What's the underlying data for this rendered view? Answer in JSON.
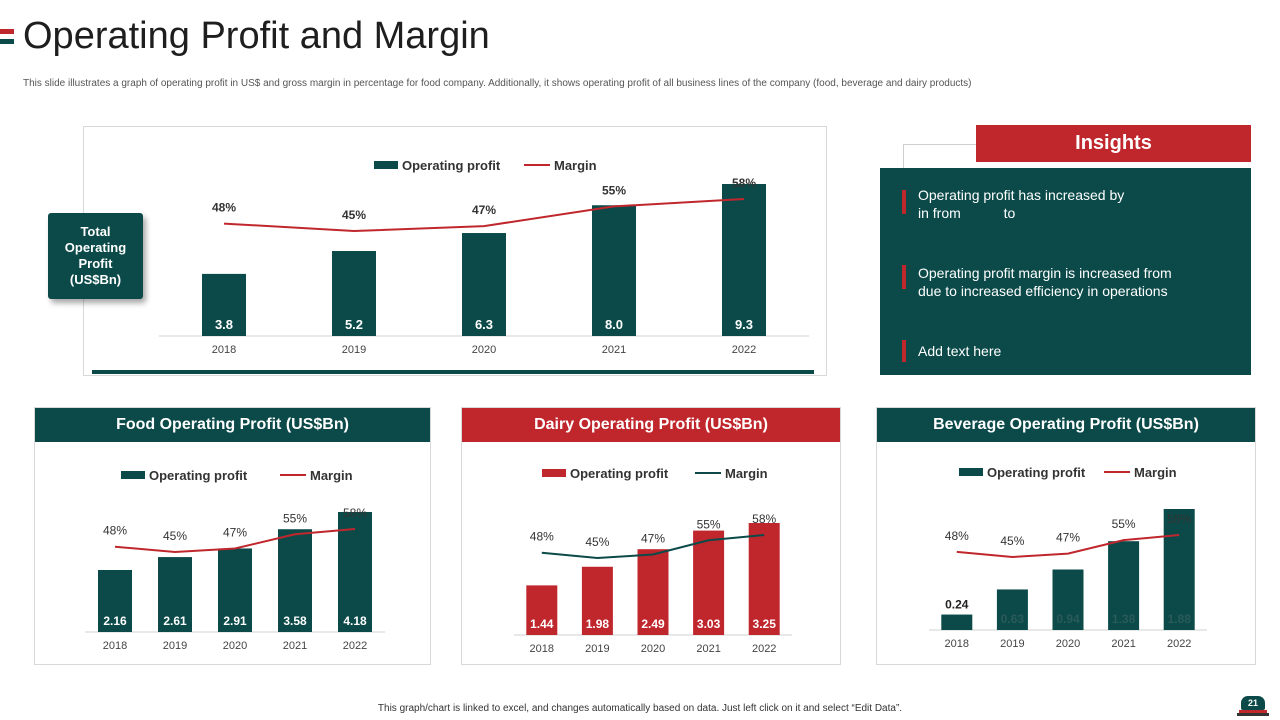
{
  "header": {
    "title": "Operating Profit and Margin",
    "subtitle": "This slide illustrates a graph of operating profit in US$ and gross margin in  percentage for food company. Additionally, it shows operating profit of all business lines of the company (food, beverage and dairy products)"
  },
  "total_box": {
    "label": "Total Operating Profit (US$Bn)"
  },
  "insights": {
    "title": "Insights",
    "items": [
      {
        "line1": "Operating profit has increased by",
        "line2": "in from           to"
      },
      {
        "line1": "Operating profit margin is increased from",
        "line2": "due to increased efficiency in operations"
      },
      {
        "line1": "Add text here",
        "line2": ""
      }
    ]
  },
  "footer": {
    "note": "This graph/chart is linked to excel, and changes automatically based on data. Just left click on it and select “Edit Data”.",
    "page_number": "21"
  },
  "colors": {
    "teal": "#0b4a49",
    "red": "#c0272d",
    "white": "#ffffff"
  },
  "chart_data": [
    {
      "id": "total",
      "type": "bar",
      "title": "Total Operating Profit (US$Bn)",
      "categories": [
        "2018",
        "2019",
        "2020",
        "2021",
        "2022"
      ],
      "series": [
        {
          "name": "Operating profit",
          "kind": "bar",
          "values": [
            3.8,
            5.2,
            6.3,
            8.0,
            9.3
          ],
          "labels": [
            "3.8",
            "5.2",
            "6.3",
            "8.0",
            "9.3"
          ]
        },
        {
          "name": "Margin",
          "kind": "line",
          "values": [
            48,
            45,
            47,
            55,
            58
          ],
          "labels": [
            "48%",
            "45%",
            "47%",
            "55%",
            "58%"
          ]
        }
      ],
      "legend": "top-center"
    },
    {
      "id": "food",
      "type": "bar",
      "title": "Food Operating Profit (US$Bn)",
      "categories": [
        "2018",
        "2019",
        "2020",
        "2021",
        "2022"
      ],
      "series": [
        {
          "name": "Operating profit",
          "kind": "bar",
          "values": [
            2.16,
            2.61,
            2.91,
            3.58,
            4.18
          ],
          "labels": [
            "2.16",
            "2.61",
            "2.91",
            "3.58",
            "4.18"
          ]
        },
        {
          "name": "Margin",
          "kind": "line",
          "values": [
            48,
            45,
            47,
            55,
            58
          ],
          "labels": [
            "48%",
            "45%",
            "47%",
            "55%",
            "58%"
          ]
        }
      ],
      "legend": "top-center"
    },
    {
      "id": "dairy",
      "type": "bar",
      "title": "Dairy Operating Profit (US$Bn)",
      "categories": [
        "2018",
        "2019",
        "2020",
        "2021",
        "2022"
      ],
      "series": [
        {
          "name": "Operating profit",
          "kind": "bar",
          "values": [
            1.44,
            1.98,
            2.49,
            3.03,
            3.25
          ],
          "labels": [
            "1.44",
            "1.98",
            "2.49",
            "3.03",
            "3.25"
          ]
        },
        {
          "name": "Margin",
          "kind": "line",
          "values": [
            48,
            45,
            47,
            55,
            58
          ],
          "labels": [
            "48%",
            "45%",
            "47%",
            "55%",
            "58%"
          ]
        }
      ],
      "legend": "top-center"
    },
    {
      "id": "beverage",
      "type": "bar",
      "title": "Beverage Operating Profit (US$Bn)",
      "categories": [
        "2018",
        "2019",
        "2020",
        "2021",
        "2022"
      ],
      "series": [
        {
          "name": "Operating profit",
          "kind": "bar",
          "values": [
            0.24,
            0.63,
            0.94,
            1.38,
            1.88
          ],
          "labels": [
            "0.24",
            "0.63",
            "0.94",
            "1.38",
            "1.88"
          ]
        },
        {
          "name": "Margin",
          "kind": "line",
          "values": [
            48,
            45,
            47,
            55,
            58
          ],
          "labels": [
            "48%",
            "45%",
            "47%",
            "55%",
            "58%"
          ]
        }
      ],
      "legend": "top-center"
    }
  ]
}
